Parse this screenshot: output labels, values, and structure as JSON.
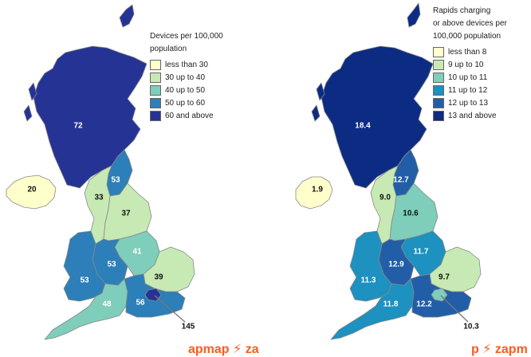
{
  "colors": {
    "left": [
      "#ffffcc",
      "#c7e9b4",
      "#7fcdbb",
      "#2c7fb8",
      "#253494"
    ],
    "right": [
      "#ffffcc",
      "#c7e9b4",
      "#7fcdbb",
      "#1d91c0",
      "#225ea8",
      "#0c2c84"
    ]
  },
  "maps": [
    {
      "legend": {
        "title_line1": "Devices per 100,000",
        "title_line2": "population",
        "items": [
          "less than 30",
          "30 up to 40",
          "40 up to 50",
          "50 up to 60",
          "60 and above"
        ]
      },
      "regions": {
        "scotland": {
          "value": "72",
          "class": 4
        },
        "northern_ireland": {
          "value": "20",
          "class": 0
        },
        "north_east": {
          "value": "53",
          "class": 3
        },
        "north_west": {
          "value": "33",
          "class": 1
        },
        "yorkshire": {
          "value": "37",
          "class": 1
        },
        "east_midlands": {
          "value": "41",
          "class": 2
        },
        "west_midlands": {
          "value": "53",
          "class": 3
        },
        "east_of_england": {
          "value": "39",
          "class": 1
        },
        "wales": {
          "value": "53",
          "class": 3
        },
        "south_west": {
          "value": "48",
          "class": 2
        },
        "south_east": {
          "value": "56",
          "class": 3
        },
        "london": {
          "value": "145",
          "class": 4
        }
      },
      "watermark": "apmap ⚡ za"
    },
    {
      "legend": {
        "title_line1": "Rapids charging",
        "title_line2": "or above devices per",
        "title_line3": "100,000 population",
        "items": [
          "less than 8",
          "9 up to 10",
          "10 up to 11",
          "11 up to 12",
          "12 up to 13",
          "13 and above"
        ]
      },
      "regions": {
        "scotland": {
          "value": "18.4",
          "class": 5
        },
        "northern_ireland": {
          "value": "1.9",
          "class": 0
        },
        "north_east": {
          "value": "12.7",
          "class": 4
        },
        "north_west": {
          "value": "9.0",
          "class": 1
        },
        "yorkshire": {
          "value": "10.6",
          "class": 2
        },
        "east_midlands": {
          "value": "11.7",
          "class": 3
        },
        "west_midlands": {
          "value": "12.9",
          "class": 4
        },
        "east_of_england": {
          "value": "9.7",
          "class": 1
        },
        "wales": {
          "value": "11.3",
          "class": 3
        },
        "south_west": {
          "value": "11.8",
          "class": 3
        },
        "south_east": {
          "value": "12.2",
          "class": 4
        },
        "london": {
          "value": "10.3",
          "class": 2
        }
      },
      "watermark": "p ⚡ zapm"
    }
  ]
}
